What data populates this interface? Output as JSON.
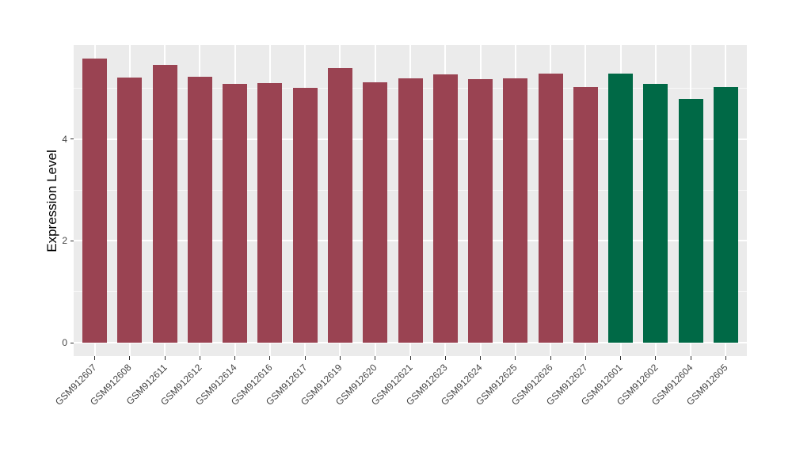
{
  "chart_data": {
    "type": "bar",
    "title": "",
    "xlabel": "",
    "ylabel": "Expression Level",
    "categories": [
      "GSM912607",
      "GSM912608",
      "GSM912611",
      "GSM912612",
      "GSM912614",
      "GSM912616",
      "GSM912617",
      "GSM912619",
      "GSM912620",
      "GSM912621",
      "GSM912623",
      "GSM912624",
      "GSM912625",
      "GSM912626",
      "GSM912627",
      "GSM912601",
      "GSM912602",
      "GSM912604",
      "GSM912605"
    ],
    "values": [
      5.58,
      5.21,
      5.45,
      5.22,
      5.09,
      5.1,
      5.0,
      5.4,
      5.11,
      5.19,
      5.27,
      5.18,
      5.19,
      5.29,
      5.02,
      5.29,
      5.09,
      4.79,
      5.02
    ],
    "bar_colors": [
      "#9A4352",
      "#9A4352",
      "#9A4352",
      "#9A4352",
      "#9A4352",
      "#9A4352",
      "#9A4352",
      "#9A4352",
      "#9A4352",
      "#9A4352",
      "#9A4352",
      "#9A4352",
      "#9A4352",
      "#9A4352",
      "#9A4352",
      "#006946",
      "#006946",
      "#006946",
      "#006946"
    ],
    "ytick_labels": [
      "0",
      "2",
      "4"
    ],
    "ytick_values": [
      0,
      2,
      4
    ],
    "minor_grid_values": [
      1,
      3,
      5
    ],
    "ylim": [
      -0.28,
      5.85
    ],
    "grid": "on",
    "legend_position": "none",
    "colors": {
      "bar_default": "#9A4352",
      "bar_highlight": "#006946",
      "panel_background": "#EBEBEB",
      "gridline": "#FFFFFF",
      "tick_mark": "#333333",
      "axis_text": "#454545",
      "axis_title": "#000000"
    }
  }
}
